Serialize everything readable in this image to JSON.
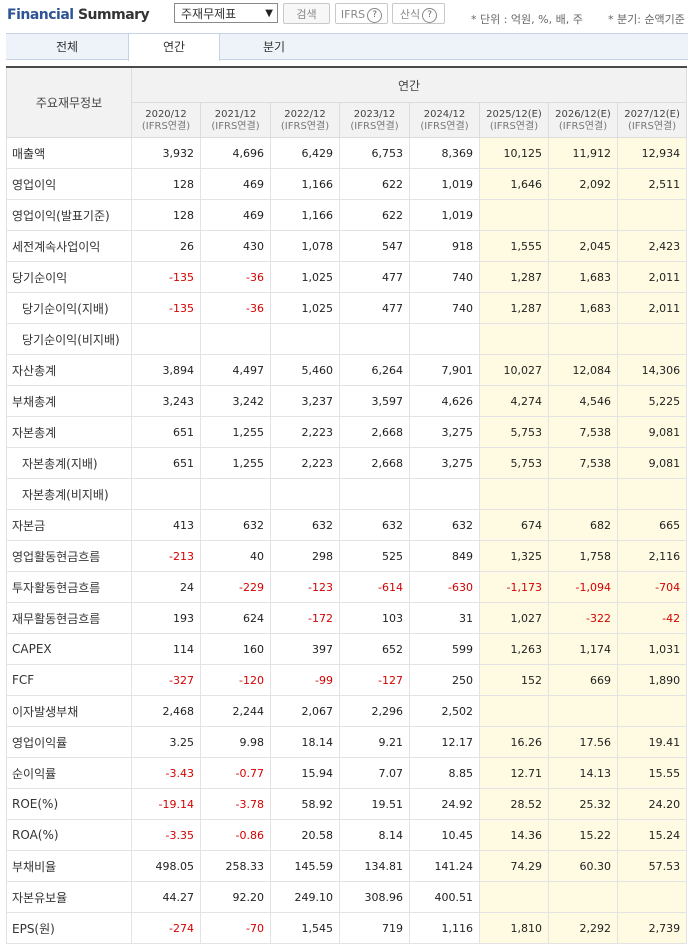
{
  "header": {
    "title_part1": "Financial",
    "title_part2": "Summary",
    "select_value": "주재무제표",
    "search_label": "검색",
    "ifrs_label": "IFRS",
    "calc_label": "산식",
    "help_glyph": "?",
    "unit_note": "* 단위 : 억원, %, 배, 주",
    "fiscal_note": "* 분기: 순액기준"
  },
  "tabs": [
    {
      "label": "전체"
    },
    {
      "label": "연간"
    },
    {
      "label": "분기"
    }
  ],
  "table": {
    "row_header": "주요재무정보",
    "group_header": "연간",
    "columns": [
      {
        "period": "2020/12",
        "basis": "(IFRS연결)"
      },
      {
        "period": "2021/12",
        "basis": "(IFRS연결)"
      },
      {
        "period": "2022/12",
        "basis": "(IFRS연결)"
      },
      {
        "period": "2023/12",
        "basis": "(IFRS연결)"
      },
      {
        "period": "2024/12",
        "basis": "(IFRS연결)"
      },
      {
        "period": "2025/12(E)",
        "basis": "(IFRS연결)"
      },
      {
        "period": "2026/12(E)",
        "basis": "(IFRS연결)"
      },
      {
        "period": "2027/12(E)",
        "basis": "(IFRS연결)"
      }
    ],
    "rows": [
      {
        "label": "매출액",
        "values": [
          "3,932",
          "4,696",
          "6,429",
          "6,753",
          "8,369",
          "10,125",
          "11,912",
          "12,934"
        ]
      },
      {
        "label": "영업이익",
        "values": [
          "128",
          "469",
          "1,166",
          "622",
          "1,019",
          "1,646",
          "2,092",
          "2,511"
        ]
      },
      {
        "label": "영업이익(발표기준)",
        "values": [
          "128",
          "469",
          "1,166",
          "622",
          "1,019",
          "",
          "",
          ""
        ]
      },
      {
        "label": "세전계속사업이익",
        "values": [
          "26",
          "430",
          "1,078",
          "547",
          "918",
          "1,555",
          "2,045",
          "2,423"
        ]
      },
      {
        "label": "당기순이익",
        "values": [
          "-135",
          "-36",
          "1,025",
          "477",
          "740",
          "1,287",
          "1,683",
          "2,011"
        ]
      },
      {
        "label": "당기순이익(지배)",
        "sub": true,
        "values": [
          "-135",
          "-36",
          "1,025",
          "477",
          "740",
          "1,287",
          "1,683",
          "2,011"
        ]
      },
      {
        "label": "당기순이익(비지배)",
        "sub": true,
        "values": [
          "",
          "",
          "",
          "",
          "",
          "",
          "",
          ""
        ]
      },
      {
        "label": "자산총계",
        "values": [
          "3,894",
          "4,497",
          "5,460",
          "6,264",
          "7,901",
          "10,027",
          "12,084",
          "14,306"
        ]
      },
      {
        "label": "부채총계",
        "values": [
          "3,243",
          "3,242",
          "3,237",
          "3,597",
          "4,626",
          "4,274",
          "4,546",
          "5,225"
        ]
      },
      {
        "label": "자본총계",
        "values": [
          "651",
          "1,255",
          "2,223",
          "2,668",
          "3,275",
          "5,753",
          "7,538",
          "9,081"
        ]
      },
      {
        "label": "자본총계(지배)",
        "sub": true,
        "values": [
          "651",
          "1,255",
          "2,223",
          "2,668",
          "3,275",
          "5,753",
          "7,538",
          "9,081"
        ]
      },
      {
        "label": "자본총계(비지배)",
        "sub": true,
        "values": [
          "",
          "",
          "",
          "",
          "",
          "",
          "",
          ""
        ]
      },
      {
        "label": "자본금",
        "values": [
          "413",
          "632",
          "632",
          "632",
          "632",
          "674",
          "682",
          "665"
        ]
      },
      {
        "label": "영업활동현금흐름",
        "values": [
          "-213",
          "40",
          "298",
          "525",
          "849",
          "1,325",
          "1,758",
          "2,116"
        ]
      },
      {
        "label": "투자활동현금흐름",
        "values": [
          "24",
          "-229",
          "-123",
          "-614",
          "-630",
          "-1,173",
          "-1,094",
          "-704"
        ]
      },
      {
        "label": "재무활동현금흐름",
        "values": [
          "193",
          "624",
          "-172",
          "103",
          "31",
          "1,027",
          "-322",
          "-42"
        ]
      },
      {
        "label": "CAPEX",
        "values": [
          "114",
          "160",
          "397",
          "652",
          "599",
          "1,263",
          "1,174",
          "1,031"
        ]
      },
      {
        "label": "FCF",
        "values": [
          "-327",
          "-120",
          "-99",
          "-127",
          "250",
          "152",
          "669",
          "1,890"
        ]
      },
      {
        "label": "이자발생부채",
        "values": [
          "2,468",
          "2,244",
          "2,067",
          "2,296",
          "2,502",
          "",
          "",
          ""
        ]
      },
      {
        "label": "영업이익률",
        "values": [
          "3.25",
          "9.98",
          "18.14",
          "9.21",
          "12.17",
          "16.26",
          "17.56",
          "19.41"
        ]
      },
      {
        "label": "순이익률",
        "values": [
          "-3.43",
          "-0.77",
          "15.94",
          "7.07",
          "8.85",
          "12.71",
          "14.13",
          "15.55"
        ]
      },
      {
        "label": "ROE(%)",
        "values": [
          "-19.14",
          "-3.78",
          "58.92",
          "19.51",
          "24.92",
          "28.52",
          "25.32",
          "24.20"
        ]
      },
      {
        "label": "ROA(%)",
        "values": [
          "-3.35",
          "-0.86",
          "20.58",
          "8.14",
          "10.45",
          "14.36",
          "15.22",
          "15.24"
        ]
      },
      {
        "label": "부채비율",
        "values": [
          "498.05",
          "258.33",
          "145.59",
          "134.81",
          "141.24",
          "74.29",
          "60.30",
          "57.53"
        ]
      },
      {
        "label": "자본유보율",
        "values": [
          "44.27",
          "92.20",
          "249.10",
          "308.96",
          "400.51",
          "",
          "",
          ""
        ]
      },
      {
        "label": "EPS(원)",
        "values": [
          "-274",
          "-70",
          "1,545",
          "719",
          "1,116",
          "1,810",
          "2,292",
          "2,739"
        ]
      }
    ]
  },
  "colors": {
    "negative": "#d60000",
    "estimate_bg": "#fffbe3",
    "title_accent": "#2f5496"
  }
}
